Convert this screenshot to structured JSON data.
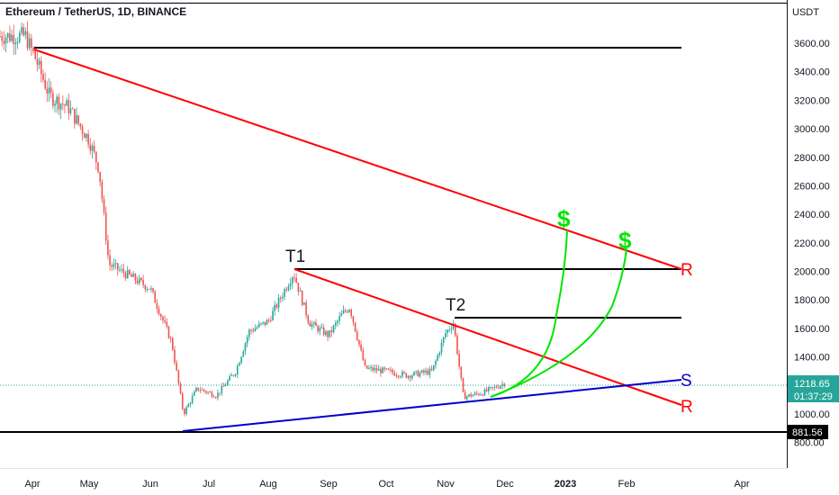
{
  "header": {
    "symbol_line": "Ethereum / TetherUS, 1D, BINANCE",
    "currency": "USDT"
  },
  "colors": {
    "up": "#26a69a",
    "down": "#ef5350",
    "resistance": "#ff0000",
    "support": "#0000cc",
    "level": "#000000",
    "arrow": "#00e600",
    "current_price_bg": "#26a69a"
  },
  "chart_data": {
    "type": "candlestick",
    "y_axis": {
      "ticks": [
        "3600.00",
        "3400.00",
        "3200.00",
        "3000.00",
        "2800.00",
        "2600.00",
        "2400.00",
        "2200.00",
        "2000.00",
        "1800.00",
        "1600.00",
        "1400.00",
        "1200.00",
        "1000.00",
        "800.00"
      ],
      "range": [
        730,
        3800
      ]
    },
    "x_axis": {
      "ticks": [
        "Apr",
        "May",
        "Jun",
        "Jul",
        "Aug",
        "Sep",
        "Oct",
        "Nov",
        "Dec",
        "2023",
        "Feb",
        "Apr"
      ],
      "bold_ticks": [
        "2023"
      ]
    },
    "current_price": {
      "value": "1218.65",
      "countdown": "01:37:29"
    },
    "low_level": {
      "value": "881.56"
    },
    "annotations": {
      "top_label": "T1",
      "second_label": "T2",
      "resistance_label": "R",
      "resistance_label_2": "R",
      "support_label": "S",
      "target_symbol": "$",
      "target_symbol_2": "$"
    },
    "anchors": [
      {
        "date": "Mar 28",
        "price": 3650
      },
      {
        "date": "Apr 3",
        "price": 3480
      },
      {
        "date": "Apr 10",
        "price": 3230
      },
      {
        "date": "Apr 20",
        "price": 3150
      },
      {
        "date": "May 1",
        "price": 2920
      },
      {
        "date": "May 6",
        "price": 2720
      },
      {
        "date": "May 11",
        "price": 2050
      },
      {
        "date": "May 20",
        "price": 1980
      },
      {
        "date": "Jun 1",
        "price": 1880
      },
      {
        "date": "Jun 12",
        "price": 1500
      },
      {
        "date": "Jun 18",
        "price": 1000
      },
      {
        "date": "Jun 25",
        "price": 1180
      },
      {
        "date": "Jul 5",
        "price": 1130
      },
      {
        "date": "Jul 15",
        "price": 1300
      },
      {
        "date": "Jul 22",
        "price": 1580
      },
      {
        "date": "Aug 1",
        "price": 1650
      },
      {
        "date": "Aug 14",
        "price": 1990
      },
      {
        "date": "Aug 22",
        "price": 1640
      },
      {
        "date": "Sep 1",
        "price": 1550
      },
      {
        "date": "Sep 8",
        "price": 1700
      },
      {
        "date": "Sep 12",
        "price": 1750
      },
      {
        "date": "Sep 20",
        "price": 1320
      },
      {
        "date": "Oct 1",
        "price": 1300
      },
      {
        "date": "Oct 12",
        "price": 1270
      },
      {
        "date": "Oct 25",
        "price": 1300
      },
      {
        "date": "Nov 1",
        "price": 1570
      },
      {
        "date": "Nov 5",
        "price": 1640
      },
      {
        "date": "Nov 8",
        "price": 1320
      },
      {
        "date": "Nov 10",
        "price": 1120
      },
      {
        "date": "Nov 20",
        "price": 1150
      },
      {
        "date": "Nov 25",
        "price": 1180
      },
      {
        "date": "Dec 1",
        "price": 1218
      }
    ]
  }
}
